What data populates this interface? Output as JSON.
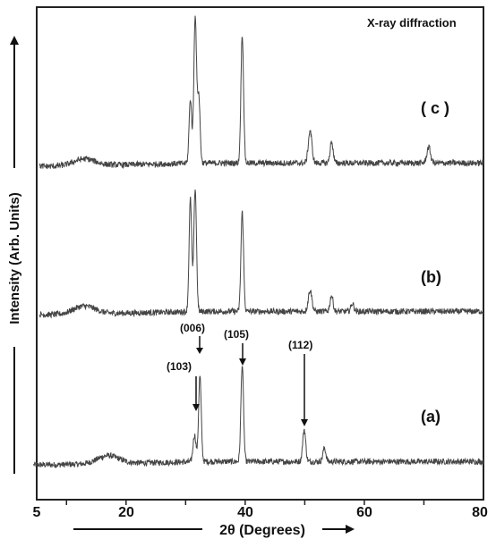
{
  "chart_data": {
    "type": "line",
    "title": "X-ray diffraction",
    "xlabel": "2θ (Degrees)",
    "ylabel": "Intensity (Arb. Units)",
    "xlim": [
      5,
      80
    ],
    "x_ticks": [
      5,
      20,
      40,
      60,
      80
    ],
    "y_ticks_shown": false,
    "grid": false,
    "legend": "none",
    "line_color": "#444444",
    "series": [
      {
        "name": "(a)",
        "baseline": 0.02,
        "peaks": [
          {
            "x": 17.0,
            "h": 0.03,
            "w": 1.8
          },
          {
            "x": 31.5,
            "h": 0.1,
            "w": 0.25
          },
          {
            "x": 32.4,
            "h": 0.32,
            "w": 0.22
          },
          {
            "x": 39.5,
            "h": 0.36,
            "w": 0.22
          },
          {
            "x": 49.9,
            "h": 0.12,
            "w": 0.25
          },
          {
            "x": 53.3,
            "h": 0.05,
            "w": 0.25
          }
        ]
      },
      {
        "name": "(b)",
        "baseline": 0.02,
        "peaks": [
          {
            "x": 13.0,
            "h": 0.03,
            "w": 1.8
          },
          {
            "x": 30.8,
            "h": 0.42,
            "w": 0.22
          },
          {
            "x": 31.6,
            "h": 0.46,
            "w": 0.22
          },
          {
            "x": 39.5,
            "h": 0.37,
            "w": 0.22
          },
          {
            "x": 50.9,
            "h": 0.08,
            "w": 0.3
          },
          {
            "x": 54.5,
            "h": 0.06,
            "w": 0.25
          },
          {
            "x": 58.0,
            "h": 0.03,
            "w": 0.25
          }
        ]
      },
      {
        "name": "( c )",
        "baseline": 0.02,
        "peaks": [
          {
            "x": 13.0,
            "h": 0.025,
            "w": 1.8
          },
          {
            "x": 30.8,
            "h": 0.24,
            "w": 0.22
          },
          {
            "x": 31.6,
            "h": 0.55,
            "w": 0.22
          },
          {
            "x": 32.2,
            "h": 0.25,
            "w": 0.22
          },
          {
            "x": 39.5,
            "h": 0.48,
            "w": 0.22
          },
          {
            "x": 50.9,
            "h": 0.12,
            "w": 0.3
          },
          {
            "x": 54.5,
            "h": 0.08,
            "w": 0.25
          },
          {
            "x": 70.8,
            "h": 0.06,
            "w": 0.3
          }
        ]
      }
    ],
    "annotations": [
      {
        "text": "(006)",
        "x": 32.4
      },
      {
        "text": "(103)",
        "x": 31.5
      },
      {
        "text": "(105)",
        "x": 39.5
      },
      {
        "text": "(112)",
        "x": 49.9
      }
    ]
  }
}
